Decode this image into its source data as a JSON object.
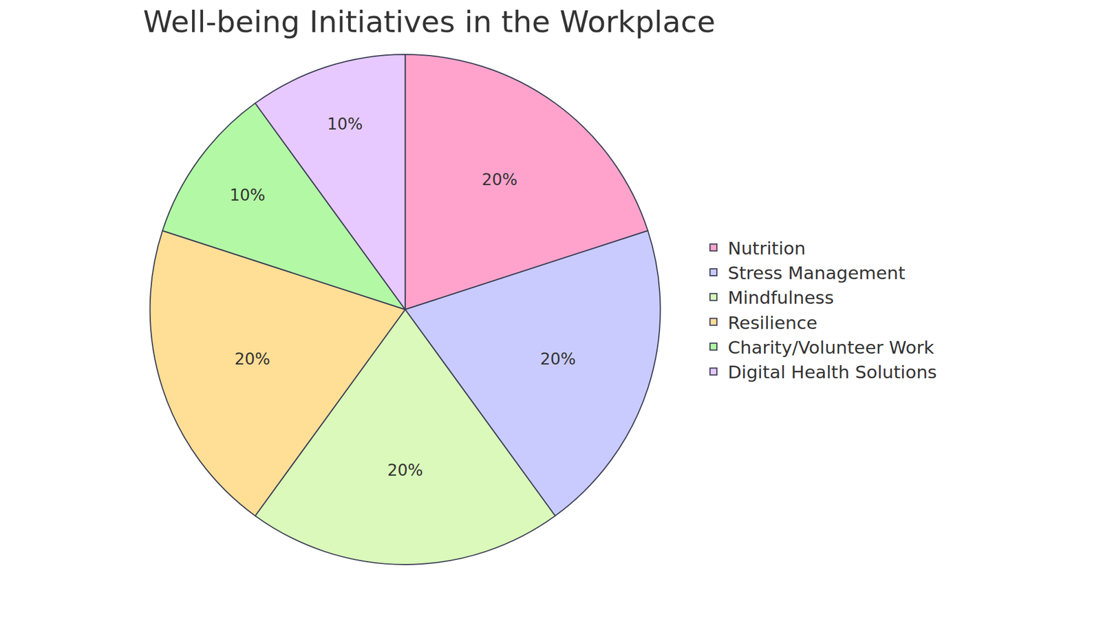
{
  "chart_data": {
    "type": "pie",
    "title": "Well-being Initiatives in the Workplace",
    "categories": [
      "Nutrition",
      "Stress Management",
      "Mindfulness",
      "Resilience",
      "Charity/Volunteer Work",
      "Digital Health Solutions"
    ],
    "values": [
      20,
      20,
      20,
      20,
      10,
      10
    ],
    "value_labels": [
      "20%",
      "20%",
      "20%",
      "20%",
      "10%",
      "10%"
    ],
    "colors": [
      "#FFA3CC",
      "#C9CBFF",
      "#DAF9BA",
      "#FFDE96",
      "#B3F8A5",
      "#E7C9FF"
    ],
    "data_labels": true,
    "legend": "right"
  }
}
